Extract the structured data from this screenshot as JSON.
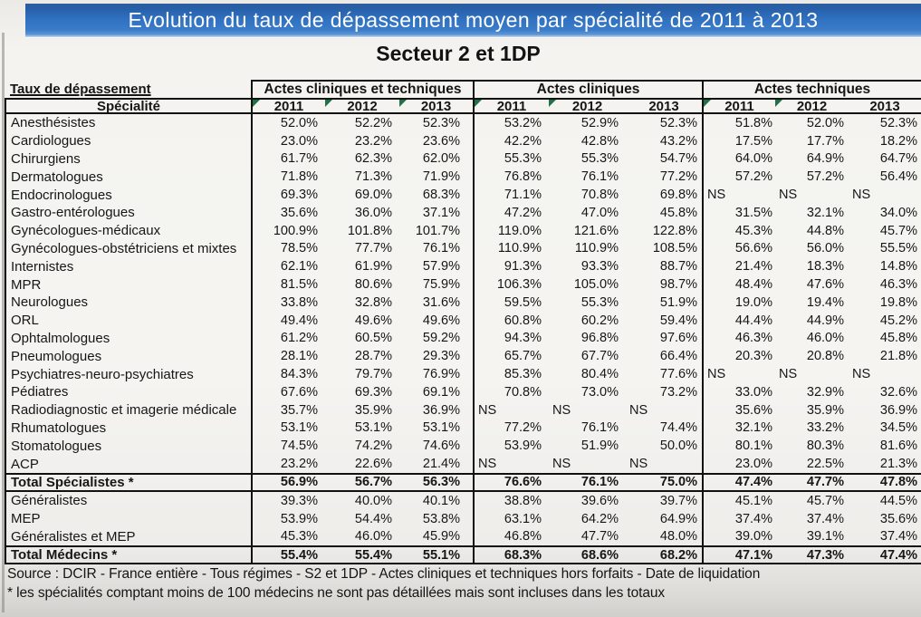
{
  "banner": {
    "title": "Evolution du taux de dépassement moyen par spécialité de 2011 à 2013",
    "bg_color": "#2f70c0",
    "text_color": "#ffffff"
  },
  "subtitle": "Secteur 2 et 1DP",
  "flag_color": "#1f7244",
  "table": {
    "corner_label": "Taux de dépassement",
    "row_header": "Spécialité",
    "groups": [
      {
        "label": "Actes cliniques et techniques",
        "years": [
          "2011",
          "2012",
          "2013"
        ],
        "flags": [
          true,
          true,
          true
        ]
      },
      {
        "label": "Actes cliniques",
        "years": [
          "2011",
          "2012",
          "2013"
        ],
        "flags": [
          true,
          true,
          false
        ]
      },
      {
        "label": "Actes techniques",
        "years": [
          "2011",
          "2012",
          "2013"
        ],
        "flags": [
          true,
          true,
          false
        ]
      }
    ],
    "rows": [
      {
        "label": "Anesthésistes",
        "total": false,
        "values": [
          "52.0%",
          "52.2%",
          "52.3%",
          "53.2%",
          "52.9%",
          "52.3%",
          "51.8%",
          "52.0%",
          "52.3%"
        ]
      },
      {
        "label": "Cardiologues",
        "total": false,
        "values": [
          "23.0%",
          "23.2%",
          "23.6%",
          "42.2%",
          "42.8%",
          "43.2%",
          "17.5%",
          "17.7%",
          "18.2%"
        ]
      },
      {
        "label": "Chirurgiens",
        "total": false,
        "values": [
          "61.7%",
          "62.3%",
          "62.0%",
          "55.3%",
          "55.3%",
          "54.7%",
          "64.0%",
          "64.9%",
          "64.7%"
        ]
      },
      {
        "label": "Dermatologues",
        "total": false,
        "values": [
          "71.8%",
          "71.3%",
          "71.9%",
          "76.8%",
          "76.1%",
          "77.2%",
          "57.2%",
          "57.2%",
          "56.4%"
        ]
      },
      {
        "label": "Endocrinologues",
        "total": false,
        "values": [
          "69.3%",
          "69.0%",
          "68.3%",
          "71.1%",
          "70.8%",
          "69.8%",
          "NS",
          "NS",
          "NS"
        ]
      },
      {
        "label": "Gastro-entérologues",
        "total": false,
        "values": [
          "35.6%",
          "36.0%",
          "37.1%",
          "47.2%",
          "47.0%",
          "45.8%",
          "31.5%",
          "32.1%",
          "34.0%"
        ]
      },
      {
        "label": "Gynécologues-médicaux",
        "total": false,
        "values": [
          "100.9%",
          "101.8%",
          "101.7%",
          "119.0%",
          "121.6%",
          "122.8%",
          "45.3%",
          "44.8%",
          "45.7%"
        ]
      },
      {
        "label": "Gynécologues-obstétriciens et mixtes",
        "total": false,
        "values": [
          "78.5%",
          "77.7%",
          "76.1%",
          "110.9%",
          "110.9%",
          "108.5%",
          "56.6%",
          "56.0%",
          "55.5%"
        ]
      },
      {
        "label": "Internistes",
        "total": false,
        "values": [
          "62.1%",
          "61.9%",
          "57.9%",
          "91.3%",
          "93.3%",
          "88.7%",
          "21.4%",
          "18.3%",
          "14.8%"
        ]
      },
      {
        "label": "MPR",
        "total": false,
        "values": [
          "81.5%",
          "80.6%",
          "75.9%",
          "106.3%",
          "105.0%",
          "98.7%",
          "48.4%",
          "47.6%",
          "46.3%"
        ]
      },
      {
        "label": "Neurologues",
        "total": false,
        "values": [
          "33.8%",
          "32.8%",
          "31.6%",
          "59.5%",
          "55.3%",
          "51.9%",
          "19.0%",
          "19.4%",
          "19.8%"
        ]
      },
      {
        "label": "ORL",
        "total": false,
        "values": [
          "49.4%",
          "49.6%",
          "49.6%",
          "60.8%",
          "60.2%",
          "59.4%",
          "44.4%",
          "44.9%",
          "45.2%"
        ]
      },
      {
        "label": "Ophtalmologues",
        "total": false,
        "values": [
          "61.2%",
          "60.5%",
          "59.2%",
          "94.3%",
          "96.8%",
          "97.6%",
          "46.3%",
          "46.0%",
          "45.8%"
        ]
      },
      {
        "label": "Pneumologues",
        "total": false,
        "values": [
          "28.1%",
          "28.7%",
          "29.3%",
          "65.7%",
          "67.7%",
          "66.4%",
          "20.3%",
          "20.8%",
          "21.8%"
        ]
      },
      {
        "label": "Psychiatres-neuro-psychiatres",
        "total": false,
        "values": [
          "84.3%",
          "79.7%",
          "76.9%",
          "85.3%",
          "80.4%",
          "77.6%",
          "NS",
          "NS",
          "NS"
        ]
      },
      {
        "label": "Pédiatres",
        "total": false,
        "values": [
          "67.6%",
          "69.3%",
          "69.1%",
          "70.8%",
          "73.0%",
          "73.2%",
          "33.0%",
          "32.9%",
          "32.6%"
        ]
      },
      {
        "label": "Radiodiagnostic et imagerie médicale",
        "total": false,
        "values": [
          "35.7%",
          "35.9%",
          "36.9%",
          "NS",
          "NS",
          "NS",
          "35.6%",
          "35.9%",
          "36.9%"
        ]
      },
      {
        "label": "Rhumatologues",
        "total": false,
        "values": [
          "53.1%",
          "53.1%",
          "53.1%",
          "77.2%",
          "76.1%",
          "74.4%",
          "32.1%",
          "33.2%",
          "34.5%"
        ]
      },
      {
        "label": "Stomatologues",
        "total": false,
        "values": [
          "74.5%",
          "74.2%",
          "74.6%",
          "53.9%",
          "51.9%",
          "50.0%",
          "80.1%",
          "80.3%",
          "81.6%"
        ]
      },
      {
        "label": "ACP",
        "total": false,
        "values": [
          "23.2%",
          "22.6%",
          "21.4%",
          "NS",
          "NS",
          "NS",
          "23.0%",
          "22.5%",
          "21.3%"
        ]
      },
      {
        "label": "Total Spécialistes *",
        "total": true,
        "values": [
          "56.9%",
          "56.7%",
          "56.3%",
          "76.6%",
          "76.1%",
          "75.0%",
          "47.4%",
          "47.7%",
          "47.8%"
        ]
      },
      {
        "label": "Généralistes",
        "total": false,
        "values": [
          "39.3%",
          "40.0%",
          "40.1%",
          "38.8%",
          "39.6%",
          "39.7%",
          "45.1%",
          "45.7%",
          "44.5%"
        ]
      },
      {
        "label": "MEP",
        "total": false,
        "values": [
          "53.9%",
          "54.4%",
          "53.8%",
          "63.1%",
          "64.2%",
          "64.9%",
          "37.4%",
          "37.4%",
          "35.6%"
        ]
      },
      {
        "label": "Généralistes et MEP",
        "total": false,
        "values": [
          "45.3%",
          "46.0%",
          "45.9%",
          "46.8%",
          "47.7%",
          "48.0%",
          "39.0%",
          "39.1%",
          "37.4%"
        ]
      },
      {
        "label": "Total Médecins *",
        "total": true,
        "values": [
          "55.4%",
          "55.4%",
          "55.1%",
          "68.3%",
          "68.6%",
          "68.2%",
          "47.1%",
          "47.3%",
          "47.4%"
        ]
      }
    ]
  },
  "footer": {
    "source": "Source : DCIR - France entière - Tous régimes - S2 et 1DP - Actes cliniques et techniques hors forfaits - Date de liquidation",
    "note": "* les spécialités comptant moins de 100 médecins ne sont pas détaillées mais sont incluses dans les totaux"
  }
}
